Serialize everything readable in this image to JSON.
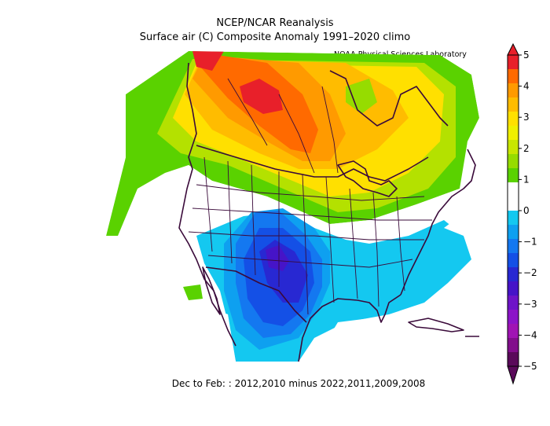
{
  "title": "NCEP/NCAR Reanalysis",
  "subtitle": "Surface air (C) Composite Anomaly 1991–2020 climo",
  "credit": "NOAA Physical Sciences Laboratory",
  "footer": "Dec to Feb: : 2012,2010 minus 2022,2011,2009,2008",
  "colorbar": {
    "ticks": [
      {
        "label": "5"
      },
      {
        "label": "4"
      },
      {
        "label": "3"
      },
      {
        "label": "2"
      },
      {
        "label": "1"
      },
      {
        "label": "0"
      },
      {
        "label": "−1"
      },
      {
        "label": "−2"
      },
      {
        "label": "−3"
      },
      {
        "label": "−4"
      },
      {
        "label": "−5"
      }
    ],
    "colors_top_to_bottom": [
      "#e8202a",
      "#ff6a00",
      "#ff9a00",
      "#ffbc00",
      "#ffe000",
      "#f0f000",
      "#c8e600",
      "#96dc00",
      "#5ad200",
      "#ffffff",
      "#ffffff",
      "#14c8f0",
      "#0ea0f0",
      "#1478f0",
      "#1450e6",
      "#2828d2",
      "#4614c8",
      "#6e14c8",
      "#8c14c8",
      "#a014b4",
      "#820e8c",
      "#5a0a5a"
    ]
  },
  "legend_colors": {
    "warm_strong": "#e8202a",
    "warm": "#ff8c00",
    "mild": "#ffe000",
    "slight_warm": "#5ad200",
    "neutral": "#ffffff",
    "slight_cold": "#14c8f0",
    "cold": "#1450e6",
    "very_cold": "#4614c8",
    "border": "#3a0a3a"
  }
}
